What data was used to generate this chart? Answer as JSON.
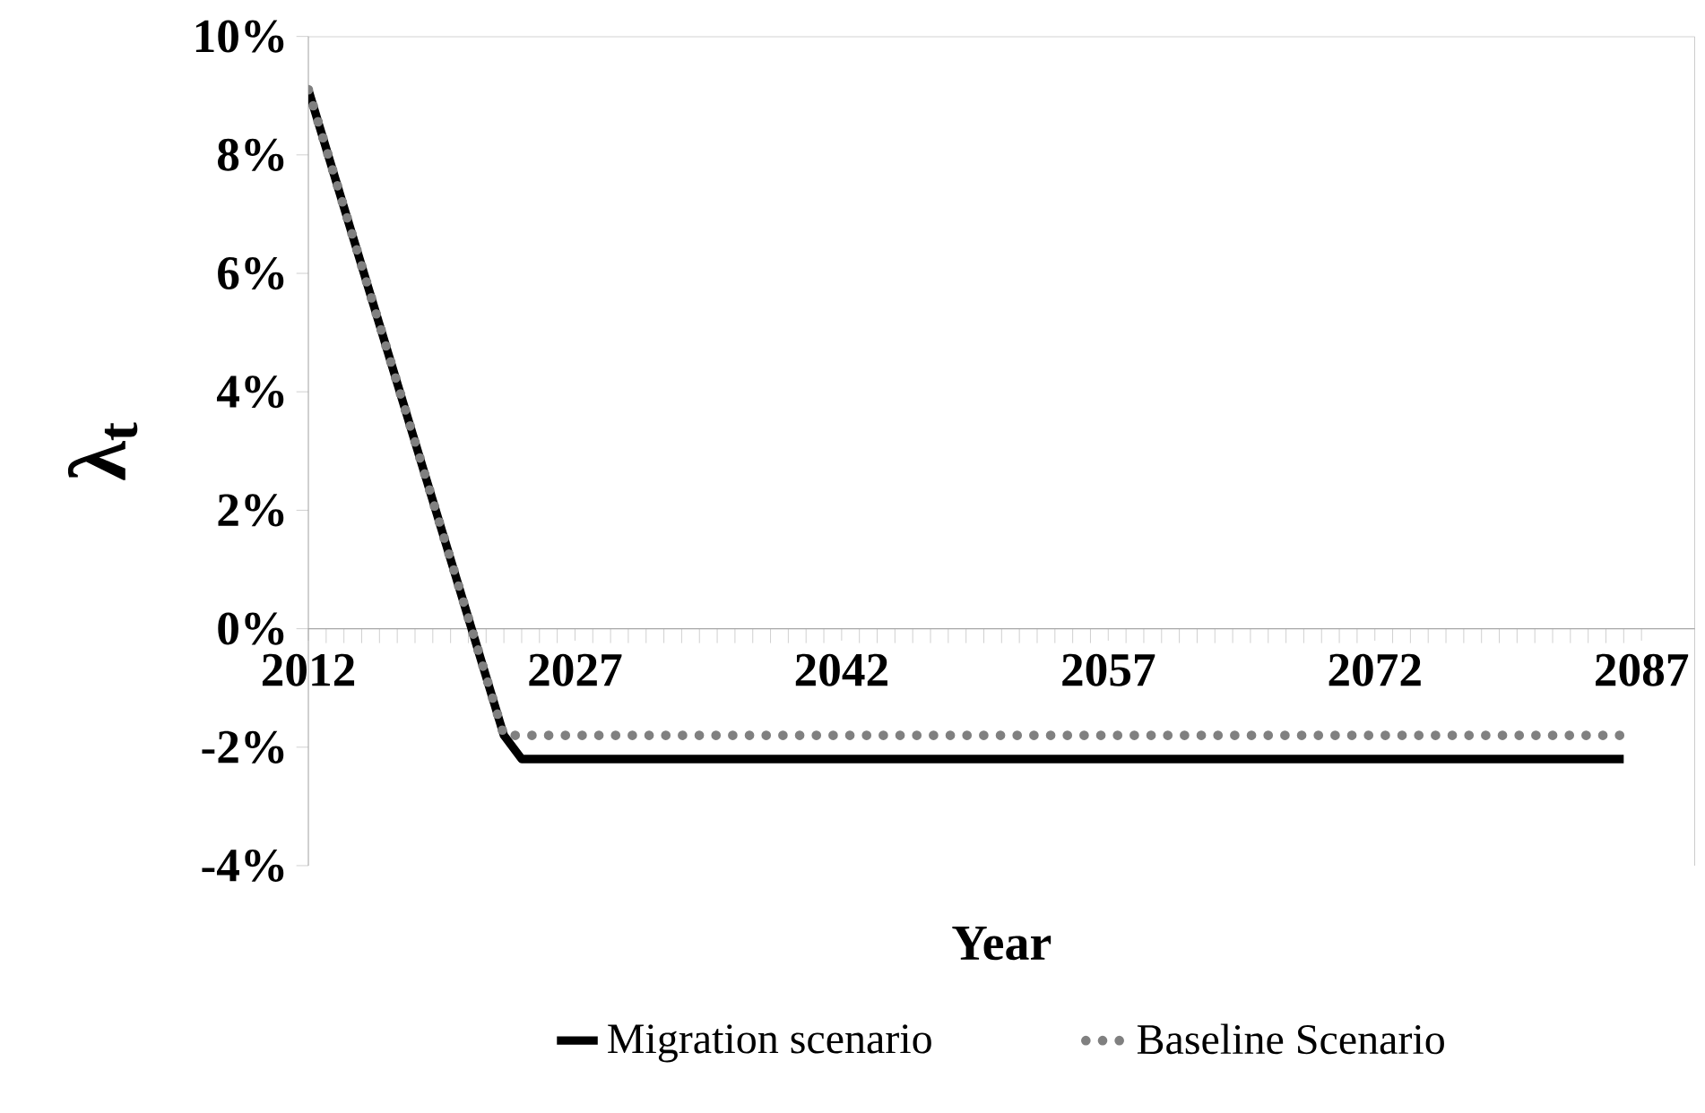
{
  "chart_data": {
    "type": "line",
    "xlabel": "Year",
    "ylabel": "λ$_{t}$",
    "xlim": [
      2012,
      2090
    ],
    "xticks": [
      2012,
      2027,
      2042,
      2057,
      2072,
      2087
    ],
    "ylim": [
      -4,
      10
    ],
    "yticks": [
      {
        "value": -4,
        "label": "-4%"
      },
      {
        "value": -2,
        "label": "-2%"
      },
      {
        "value": 0,
        "label": "0%"
      },
      {
        "value": 2,
        "label": "2%"
      },
      {
        "value": 4,
        "label": "4%"
      },
      {
        "value": 6,
        "label": "6%"
      },
      {
        "value": 8,
        "label": "8%"
      },
      {
        "value": 10,
        "label": "10%"
      }
    ],
    "grid": false,
    "legend": "bottom",
    "marker": "none",
    "series": [
      {
        "name": "Migration scenario",
        "color": "#000000",
        "line_style": "solid",
        "x": [
          2012,
          2023,
          2024,
          2086
        ],
        "values": [
          9.1,
          -1.8,
          -2.2,
          -2.2
        ]
      },
      {
        "name": "Baseline Scenario",
        "color": "#808080",
        "line_style": "dotted",
        "x": [
          2012,
          2023,
          2086
        ],
        "values": [
          9.1,
          -1.8,
          -1.8
        ]
      }
    ]
  }
}
